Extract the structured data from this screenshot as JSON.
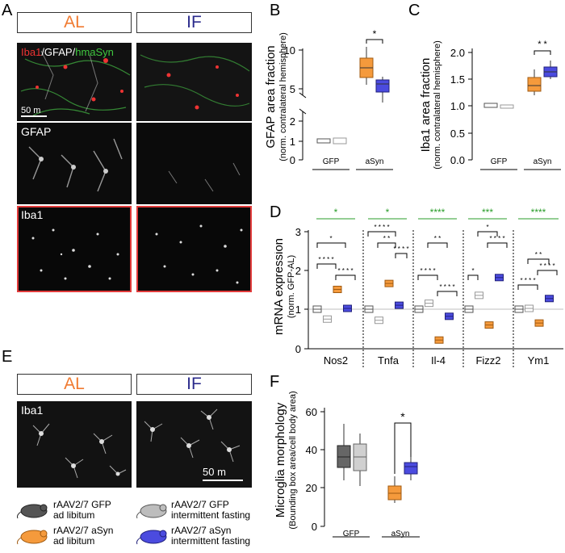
{
  "panels": {
    "A": "A",
    "B": "B",
    "C": "C",
    "D": "D",
    "E": "E",
    "F": "F"
  },
  "headers": {
    "al": "AL",
    "if": "IF"
  },
  "colors": {
    "al": "#f07a30",
    "if": "#2b2b8c",
    "gfp_al": "#555555",
    "gfp_if": "#bdbdbd",
    "asyn_al": "#f59a3c",
    "asyn_if": "#4b4bdf"
  },
  "micro_labels": {
    "merge_iba1": "Iba1",
    "merge_gfap": "/GFAP/",
    "merge_hmasyn": "hmaSyn",
    "scale_a": "50  m",
    "gfap": "GFAP",
    "iba1": "Iba1",
    "iba1_e": "Iba1",
    "scale_e": "50   m"
  },
  "chart_data": [
    {
      "panel": "B",
      "type": "box",
      "ylabel": "GFAP area fraction",
      "ylabel2": "(norm. contralateral hemisphere)",
      "yticks_lower": [
        "0",
        "1",
        "2"
      ],
      "yticks_upper": [
        "5",
        "10"
      ],
      "categories": [
        "GFP",
        "aSyn"
      ],
      "series": [
        {
          "group": "GFP-AL",
          "median": 1.0,
          "q1": 0.95,
          "q3": 1.05
        },
        {
          "group": "GFP-IF",
          "median": 1.0,
          "q1": 0.92,
          "q3": 1.07
        },
        {
          "group": "aSyn-AL",
          "median": 7.5,
          "q1": 6.5,
          "q3": 8.8,
          "min": 4.8,
          "max": 9.7
        },
        {
          "group": "aSyn-IF",
          "median": 5.9,
          "q1": 5.2,
          "q3": 6.5,
          "min": 3.8,
          "max": 6.8
        }
      ],
      "significance": "*"
    },
    {
      "panel": "C",
      "type": "box",
      "ylabel": "Iba1 area fraction",
      "ylabel2": "(norm. contralateral hemisphere)",
      "yticks": [
        "0.0",
        "0.5",
        "1.0",
        "1.5",
        "2.0"
      ],
      "ylim": [
        0,
        2.0
      ],
      "categories": [
        "GFP",
        "aSyn"
      ],
      "series": [
        {
          "group": "GFP-AL",
          "median": 1.0,
          "q1": 0.98,
          "q3": 1.03
        },
        {
          "group": "GFP-IF",
          "median": 0.98,
          "q1": 0.96,
          "q3": 1.0
        },
        {
          "group": "aSyn-AL",
          "median": 1.35,
          "q1": 1.28,
          "q3": 1.52,
          "min": 1.2,
          "max": 1.72
        },
        {
          "group": "aSyn-IF",
          "median": 1.6,
          "q1": 1.52,
          "q3": 1.7,
          "min": 1.45,
          "max": 1.78
        }
      ],
      "significance": "* *"
    },
    {
      "panel": "D",
      "type": "box",
      "ylabel": "mRNA expression",
      "ylabel2": "(norm. GFP-AL)",
      "yticks": [
        "0",
        "1",
        "2",
        "3"
      ],
      "ylim": [
        0,
        3
      ],
      "categories": [
        "Nos2",
        "Tnfa",
        "Il-4",
        "Fizz2",
        "Ym1"
      ],
      "series": [
        {
          "gene": "Nos2",
          "values": [
            1.0,
            0.75,
            1.5,
            1.02
          ]
        },
        {
          "gene": "Tnfa",
          "values": [
            1.0,
            0.72,
            1.65,
            1.1
          ]
        },
        {
          "gene": "Il-4",
          "values": [
            1.0,
            1.15,
            0.22,
            0.82
          ]
        },
        {
          "gene": "Fizz2",
          "values": [
            1.0,
            1.35,
            0.6,
            1.8
          ]
        },
        {
          "gene": "Ym1",
          "values": [
            1.0,
            1.02,
            0.65,
            1.27
          ]
        }
      ],
      "green_sig": [
        "*",
        "*",
        "****",
        "***",
        "****"
      ],
      "black_sig": [
        "* * * *",
        "*",
        "* * * *",
        "* * * *",
        "* *",
        "* * * *",
        "* * * *",
        "* *",
        "* * * *",
        "*",
        "*",
        "* * * *",
        "* * * *",
        "* *",
        "* * * *"
      ]
    },
    {
      "panel": "F",
      "type": "box",
      "ylabel": "Microglia morphology",
      "ylabel2": "(Bounding box area/cell body area)",
      "yticks": [
        "0",
        "20",
        "40",
        "60"
      ],
      "ylim": [
        0,
        60
      ],
      "categories": [
        "GFP",
        "aSyn"
      ],
      "series": [
        {
          "group": "GFP-AL",
          "median": 36,
          "q1": 31,
          "q3": 42,
          "min": 24,
          "max": 53
        },
        {
          "group": "GFP-IF",
          "median": 36,
          "q1": 29,
          "q3": 43,
          "min": 21,
          "max": 48
        },
        {
          "group": "aSyn-AL",
          "median": 17,
          "q1": 14,
          "q3": 21,
          "min": 12,
          "max": 26
        },
        {
          "group": "aSyn-IF",
          "median": 31,
          "q1": 28,
          "q3": 33,
          "min": 24,
          "max": 36
        }
      ],
      "significance": "*"
    }
  ],
  "axis_groups": {
    "gfp": "GFP",
    "asyn": "aSyn"
  },
  "legend": [
    {
      "line1": "rAAV2/7 GFP",
      "line2": "ad libitum",
      "color": "#555555"
    },
    {
      "line1": "rAAV2/7 GFP",
      "line2": "intermittent fasting",
      "color": "#bdbdbd"
    },
    {
      "line1": "rAAV2/7 aSyn",
      "line2": "ad libitum",
      "color": "#f59a3c"
    },
    {
      "line1": "rAAV2/7 aSyn",
      "line2": "intermittent fasting",
      "color": "#4b4bdf"
    }
  ]
}
